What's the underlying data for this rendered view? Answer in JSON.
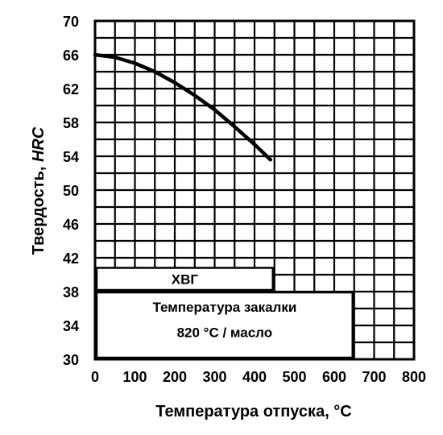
{
  "chart_data": {
    "type": "line",
    "title": "",
    "xlabel": "Температура отпуска, °С",
    "ylabel_prefix": "Твердость, ",
    "ylabel_unit": "HRC",
    "xlim": [
      0,
      800
    ],
    "ylim": [
      30,
      70
    ],
    "x_ticks": [
      0,
      100,
      200,
      300,
      400,
      500,
      600,
      700,
      800
    ],
    "x_tick_labels": [
      "0",
      "100",
      "200",
      "300",
      "400",
      "500",
      "600",
      "700",
      "800"
    ],
    "y_ticks": [
      30,
      34,
      38,
      42,
      46,
      50,
      54,
      58,
      62,
      66,
      70
    ],
    "y_tick_labels": [
      "30",
      "34",
      "38",
      "42",
      "46",
      "50",
      "54",
      "58",
      "62",
      "66",
      "70"
    ],
    "grid": true,
    "grid_step_x": 50,
    "grid_step_y": 2,
    "series": [
      {
        "x": [
          0,
          50,
          100,
          150,
          200,
          250,
          300,
          350,
          400,
          440
        ],
        "y": [
          66,
          65.7,
          65,
          64,
          62.7,
          61.2,
          59.5,
          57.5,
          55.4,
          53.6
        ]
      }
    ],
    "steel_label": "ХВГ",
    "quench_line1": "Температура закалки",
    "quench_line2": "820 °С / масло"
  }
}
